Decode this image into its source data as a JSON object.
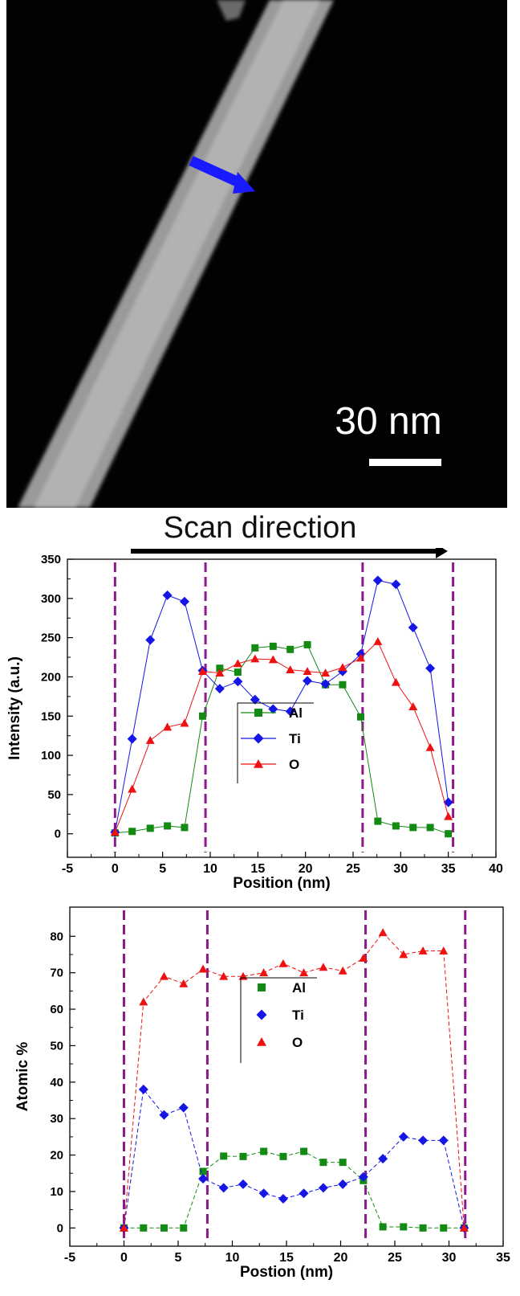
{
  "micrograph": {
    "scale_bar_label": "30 nm",
    "arrow_color": "#1a1aff"
  },
  "scan_label": "Scan direction",
  "colors": {
    "Al": "#138a13",
    "Ti": "#1515e6",
    "O": "#ee1111",
    "dashed": "#8b1a8b"
  },
  "chart_data": [
    {
      "type": "line",
      "xlabel": "Position (nm)",
      "ylabel": "Intensity (a.u.)",
      "xlim": [
        -5,
        40
      ],
      "ylim": [
        -30,
        350
      ],
      "xticks": [
        -5,
        0,
        5,
        10,
        15,
        20,
        25,
        30,
        35,
        40
      ],
      "yticks": [
        0,
        50,
        100,
        150,
        200,
        250,
        300,
        350
      ],
      "legend_position": "center",
      "boundaries": [
        0,
        9.5,
        26,
        35.5
      ],
      "series": [
        {
          "name": "Al",
          "marker": "square",
          "x": [
            0,
            1.8,
            3.7,
            5.5,
            7.3,
            9.2,
            11,
            12.9,
            14.7,
            16.6,
            18.4,
            20.2,
            22.1,
            23.9,
            25.8,
            27.6,
            29.5,
            31.3,
            33.1,
            35
          ],
          "y": [
            1,
            3,
            7,
            10,
            8,
            150,
            211,
            206,
            237,
            239,
            235,
            241,
            190,
            190,
            149,
            16,
            10,
            8,
            8,
            0
          ]
        },
        {
          "name": "Ti",
          "marker": "diamond",
          "x": [
            0,
            1.8,
            3.7,
            5.5,
            7.3,
            9.2,
            11,
            12.9,
            14.7,
            16.6,
            18.4,
            20.2,
            22.1,
            23.9,
            25.8,
            27.6,
            29.5,
            31.3,
            33.1,
            35
          ],
          "y": [
            2,
            121,
            247,
            304,
            296,
            208,
            185,
            194,
            171,
            159,
            156,
            195,
            191,
            207,
            229,
            323,
            318,
            263,
            211,
            40
          ]
        },
        {
          "name": "O",
          "marker": "triangle",
          "x": [
            0,
            1.8,
            3.7,
            5.5,
            7.3,
            9.2,
            11,
            12.9,
            14.7,
            16.6,
            18.4,
            20.2,
            22.1,
            23.9,
            25.8,
            27.6,
            29.5,
            31.3,
            33.1,
            35
          ],
          "y": [
            2,
            57,
            119,
            136,
            141,
            207,
            205,
            217,
            223,
            222,
            209,
            207,
            205,
            212,
            224,
            245,
            193,
            162,
            110,
            22
          ]
        }
      ]
    },
    {
      "type": "line",
      "xlabel": "Postion (nm)",
      "ylabel": "Atomic %",
      "xlim": [
        -5,
        35
      ],
      "ylim": [
        -5,
        88
      ],
      "xticks": [
        -5,
        0,
        5,
        10,
        15,
        20,
        25,
        30,
        35
      ],
      "yticks": [
        0,
        10,
        20,
        30,
        40,
        50,
        60,
        70,
        80
      ],
      "legend_position": "center",
      "boundaries": [
        0,
        7.7,
        22.3,
        31.5
      ],
      "series": [
        {
          "name": "Al",
          "marker": "square",
          "x": [
            0,
            1.8,
            3.7,
            5.5,
            7.3,
            9.2,
            11,
            12.9,
            14.7,
            16.6,
            18.4,
            20.2,
            22.1,
            23.9,
            25.8,
            27.6,
            29.5,
            31.4
          ],
          "y": [
            0,
            0,
            0,
            0,
            15.5,
            19.7,
            19.6,
            21,
            19.6,
            21,
            18,
            18,
            13,
            0.3,
            0.3,
            0,
            0,
            0
          ]
        },
        {
          "name": "Ti",
          "marker": "diamond",
          "x": [
            0,
            1.8,
            3.7,
            5.5,
            7.3,
            9.2,
            11,
            12.9,
            14.7,
            16.6,
            18.4,
            20.2,
            22.1,
            23.9,
            25.8,
            27.6,
            29.5,
            31.4
          ],
          "y": [
            0,
            38,
            31,
            33,
            13.5,
            11,
            12,
            9.5,
            8,
            9.5,
            11,
            12,
            14,
            19,
            25,
            24,
            24,
            0
          ]
        },
        {
          "name": "O",
          "marker": "triangle",
          "x": [
            0,
            1.8,
            3.7,
            5.5,
            7.3,
            9.2,
            11,
            12.9,
            14.7,
            16.6,
            18.4,
            20.2,
            22.1,
            23.9,
            25.8,
            27.6,
            29.5,
            31.4
          ],
          "y": [
            0,
            62,
            69,
            67,
            71,
            69,
            69,
            70,
            72.5,
            70,
            71.5,
            70.5,
            74,
            81,
            75,
            76,
            76,
            0
          ]
        }
      ]
    }
  ]
}
